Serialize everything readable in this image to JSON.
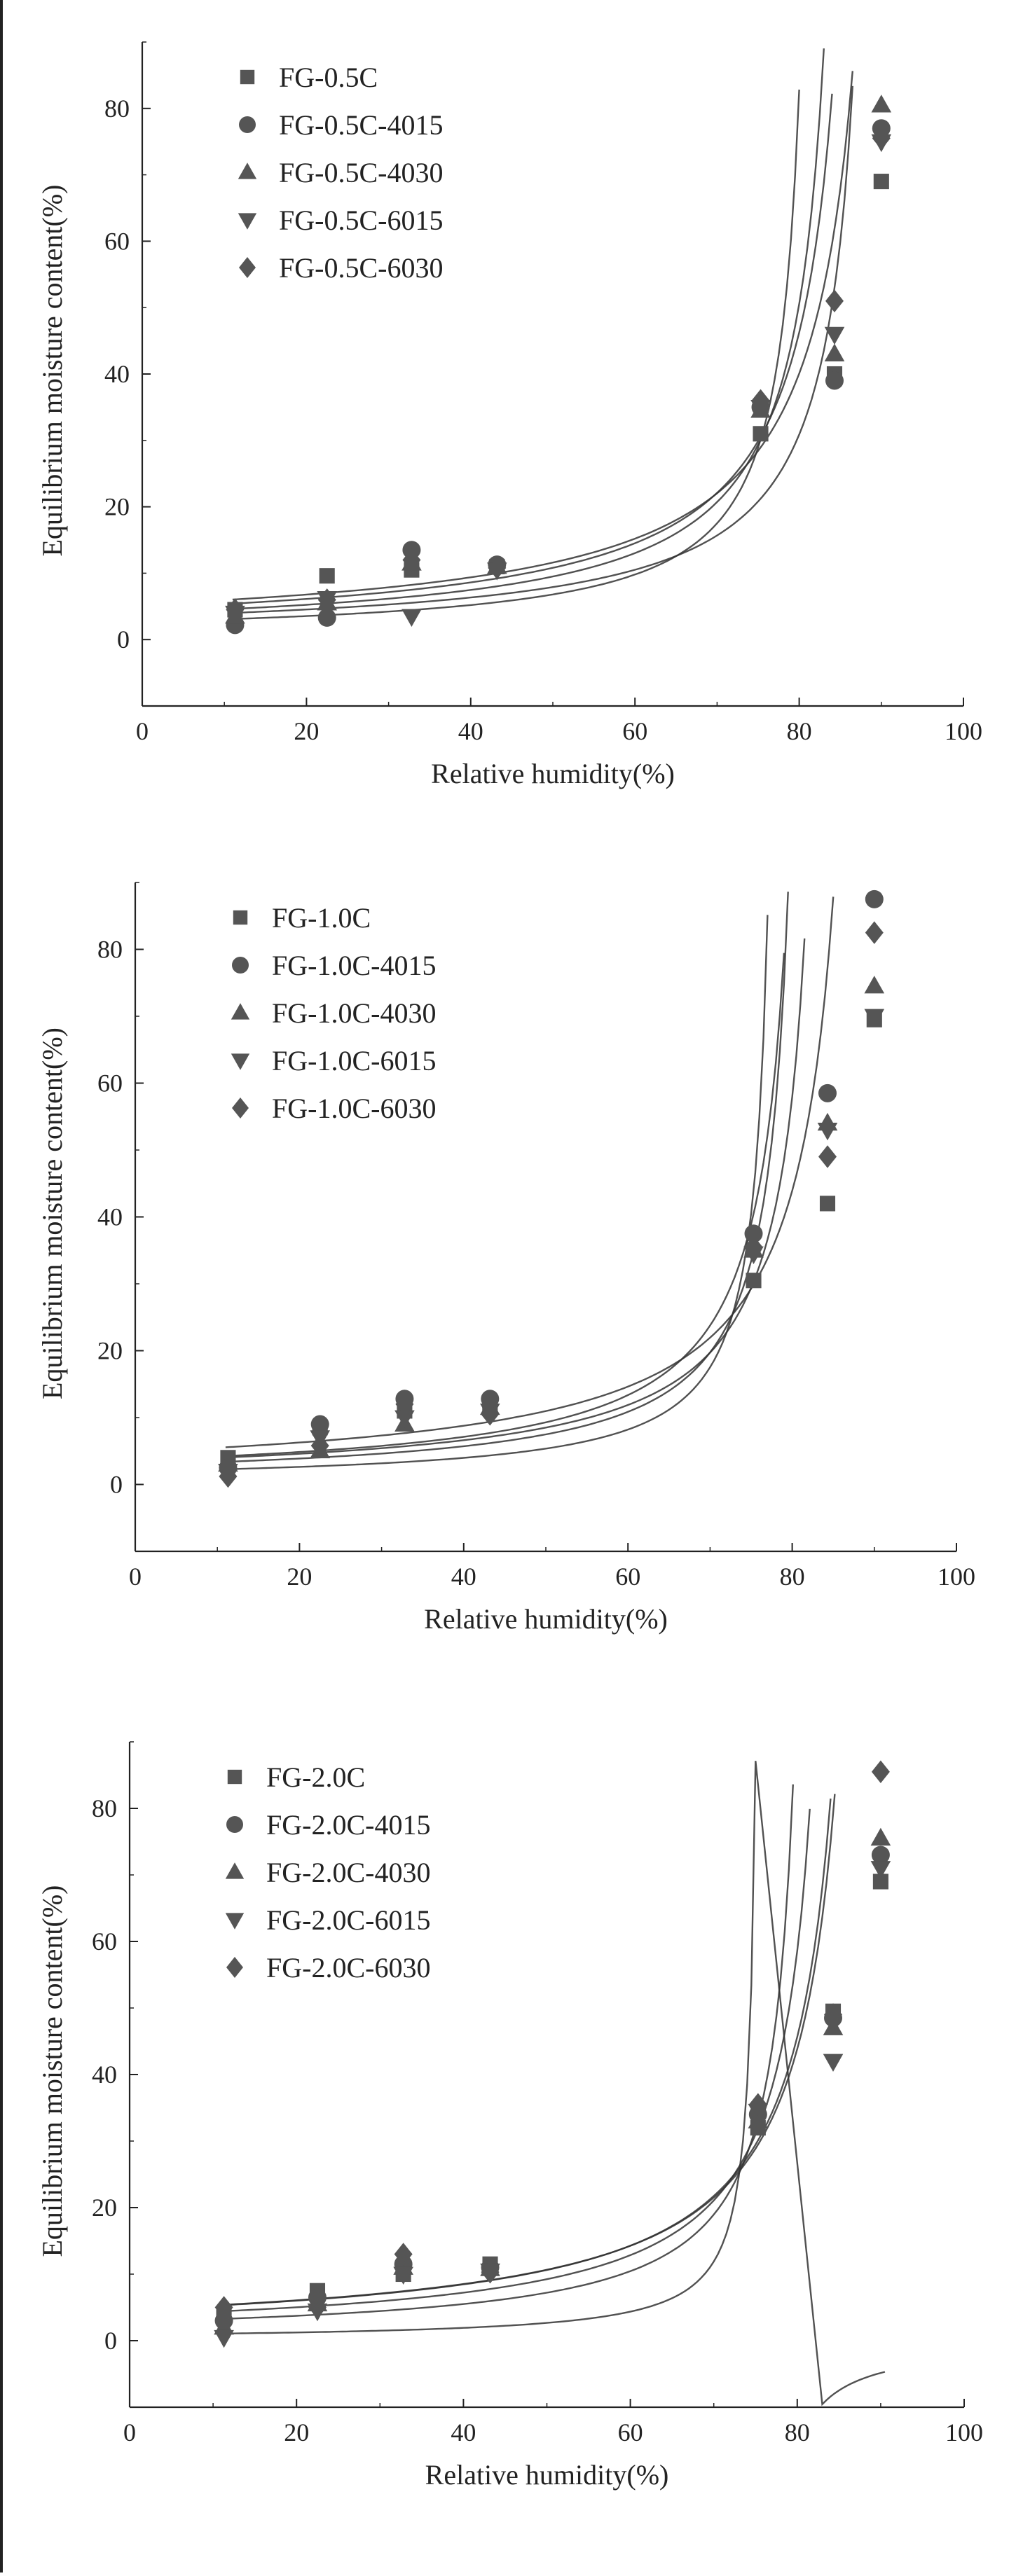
{
  "colors": {
    "marker": "#555555",
    "axis": "#222222",
    "curve": "#333333"
  },
  "chart_data": [
    {
      "type": "scatter",
      "xlabel": "Relative humidity(%)",
      "ylabel": "Equilibrium moisture content(%)",
      "xlim": [
        0,
        100
      ],
      "ylim": [
        -10,
        90
      ],
      "xticks": [
        "0",
        "20",
        "40",
        "60",
        "80",
        "100"
      ],
      "yticks": [
        "0",
        "20",
        "40",
        "60",
        "80"
      ],
      "legend_position": "top-left",
      "series": [
        {
          "name": "FG-0.5C",
          "marker": "square",
          "x": [
            11.3,
            22.5,
            32.8,
            43.2,
            75.3,
            84.3,
            90
          ],
          "y": [
            4.5,
            9.6,
            10.5,
            11,
            31,
            40,
            69
          ]
        },
        {
          "name": "FG-0.5C-4015",
          "marker": "circle",
          "x": [
            11.3,
            22.5,
            32.8,
            43.2,
            75.3,
            84.3,
            90
          ],
          "y": [
            2.2,
            3.3,
            13.5,
            11.3,
            35,
            39,
            77
          ]
        },
        {
          "name": "FG-0.5C-4030",
          "marker": "triangle-up",
          "x": [
            11.3,
            22.5,
            32.8,
            43.2,
            75.3,
            84.3,
            90
          ],
          "y": [
            3.5,
            5.5,
            11.5,
            11,
            34.5,
            43,
            80.5
          ]
        },
        {
          "name": "FG-0.5C-6015",
          "marker": "triangle-down",
          "x": [
            11.3,
            22.5,
            32.8,
            43.2,
            75.3,
            84.3,
            90
          ],
          "y": [
            4,
            6.2,
            3.5,
            10.5,
            35,
            46,
            75
          ]
        },
        {
          "name": "FG-0.5C-6030",
          "marker": "diamond",
          "x": [
            11.3,
            22.5,
            32.8,
            43.2,
            75.3,
            84.3,
            90
          ],
          "y": [
            4.5,
            6,
            12,
            10.8,
            36,
            51,
            75.5
          ]
        }
      ]
    },
    {
      "type": "scatter",
      "xlabel": "Relative humidity(%)",
      "ylabel": "Equilibrium moisture content(%)",
      "xlim": [
        0,
        100
      ],
      "ylim": [
        -10,
        90
      ],
      "xticks": [
        "0",
        "20",
        "40",
        "60",
        "80",
        "100"
      ],
      "yticks": [
        "0",
        "20",
        "40",
        "60",
        "80"
      ],
      "legend_position": "top-left",
      "series": [
        {
          "name": "FG-1.0C",
          "marker": "square",
          "x": [
            11.3,
            22.5,
            32.8,
            43.2,
            75.3,
            84.3,
            90
          ],
          "y": [
            4,
            8.5,
            11,
            11.5,
            30.5,
            42,
            69.5
          ]
        },
        {
          "name": "FG-1.0C-4015",
          "marker": "circle",
          "x": [
            11.3,
            22.5,
            32.8,
            43.2,
            75.3,
            84.3,
            90
          ],
          "y": [
            2.5,
            9,
            12.8,
            12.8,
            37.5,
            58.5,
            87.5
          ]
        },
        {
          "name": "FG-1.0C-4030",
          "marker": "triangle-up",
          "x": [
            11.3,
            22.5,
            32.8,
            43.2,
            75.3,
            84.3,
            90
          ],
          "y": [
            3,
            5,
            9,
            11.5,
            35,
            54,
            74.5
          ]
        },
        {
          "name": "FG-1.0C-6015",
          "marker": "triangle-down",
          "x": [
            11.3,
            22.5,
            32.8,
            43.2,
            75.3,
            84.3,
            90
          ],
          "y": [
            2,
            7,
            10,
            11,
            34.5,
            53,
            70
          ]
        },
        {
          "name": "FG-1.0C-6030",
          "marker": "diamond",
          "x": [
            11.3,
            22.5,
            32.8,
            43.2,
            75.3,
            84.3,
            90
          ],
          "y": [
            1.2,
            5.8,
            12,
            10.5,
            35.5,
            49,
            82.5
          ]
        }
      ]
    },
    {
      "type": "scatter",
      "xlabel": "Relative humidity(%)",
      "ylabel": "Equilibrium moisture content(%)",
      "xlim": [
        0,
        100
      ],
      "ylim": [
        -10,
        90
      ],
      "xticks": [
        "0",
        "20",
        "40",
        "60",
        "80",
        "100"
      ],
      "yticks": [
        "0",
        "20",
        "40",
        "60",
        "80"
      ],
      "legend_position": "top-left",
      "series": [
        {
          "name": "FG-2.0C",
          "marker": "square",
          "x": [
            11.3,
            22.5,
            32.8,
            43.2,
            75.3,
            84.3,
            90
          ],
          "y": [
            4,
            7.5,
            10,
            11.5,
            32,
            49.5,
            69
          ]
        },
        {
          "name": "FG-2.0C-4015",
          "marker": "circle",
          "x": [
            11.3,
            22.5,
            32.8,
            43.2,
            75.3,
            84.3,
            90
          ],
          "y": [
            3,
            6.5,
            11.5,
            11,
            34,
            48.5,
            73
          ]
        },
        {
          "name": "FG-2.0C-4030",
          "marker": "triangle-up",
          "x": [
            11.3,
            22.5,
            32.8,
            43.2,
            75.3,
            84.3,
            90
          ],
          "y": [
            2,
            5.5,
            11,
            10.8,
            33,
            47,
            75.5
          ]
        },
        {
          "name": "FG-2.0C-6015",
          "marker": "triangle-down",
          "x": [
            11.3,
            22.5,
            32.8,
            43.2,
            75.3,
            84.3,
            90
          ],
          "y": [
            0.5,
            4.5,
            10,
            10.5,
            34.5,
            42,
            71
          ]
        },
        {
          "name": "FG-2.0C-6030",
          "marker": "diamond",
          "x": [
            11.3,
            22.5,
            32.8,
            43.2,
            75.3,
            84.3,
            90
          ],
          "y": [
            5,
            5,
            13,
            10.3,
            35.5,
            49,
            85.5
          ]
        }
      ]
    }
  ]
}
